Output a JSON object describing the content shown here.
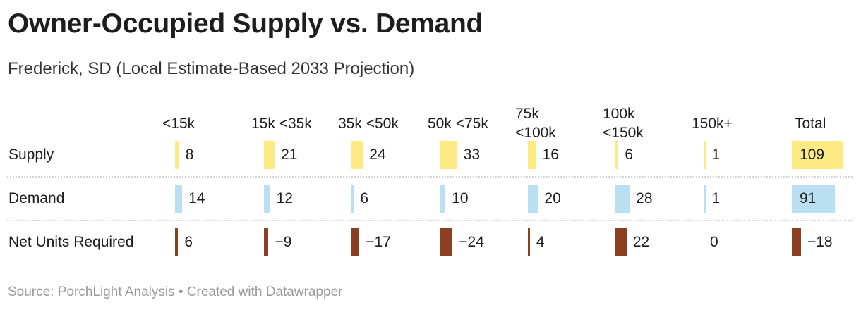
{
  "title": "Owner-Occupied Supply vs. Demand",
  "subtitle": "Frederick, SD (Local Estimate-Based 2033 Projection)",
  "source": "Source: PorchLight Analysis • Created with Datawrapper",
  "chart_data": {
    "type": "table",
    "columns": [
      {
        "line1": "<15k",
        "line2": ""
      },
      {
        "line1": "15k <35k",
        "line2": ""
      },
      {
        "line1": "35k <50k",
        "line2": ""
      },
      {
        "line1": "50k <75k",
        "line2": ""
      },
      {
        "line1": "75k",
        "line2": "<100k"
      },
      {
        "line1": "100k",
        "line2": "<150k"
      },
      {
        "line1": "150k+",
        "line2": ""
      },
      {
        "line1": "Total",
        "line2": ""
      }
    ],
    "rows": [
      {
        "label": "Supply",
        "color": "#feea83",
        "values": [
          8,
          21,
          24,
          33,
          16,
          6,
          1,
          109
        ],
        "display": [
          "8",
          "21",
          "24",
          "33",
          "16",
          "6",
          "1",
          "109"
        ]
      },
      {
        "label": "Demand",
        "color": "#b9dff0",
        "values": [
          14,
          12,
          6,
          10,
          20,
          28,
          1,
          91
        ],
        "display": [
          "14",
          "12",
          "6",
          "10",
          "20",
          "28",
          "1",
          "91"
        ]
      },
      {
        "label": "Net Units Required",
        "color": "#8b3f20",
        "values": [
          6,
          -9,
          -17,
          -24,
          4,
          22,
          0,
          -18
        ],
        "display": [
          "6",
          "−9",
          "−17",
          "−24",
          "4",
          "22",
          "0",
          "−18"
        ]
      }
    ]
  }
}
